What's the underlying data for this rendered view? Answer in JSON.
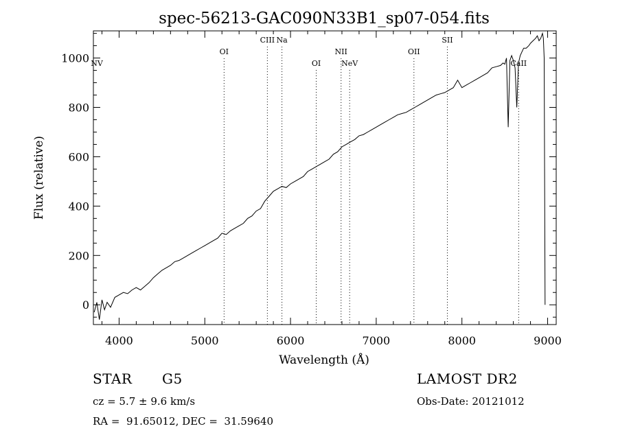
{
  "chart_data": {
    "type": "line",
    "title": "spec-56213-GAC090N33B1_sp07-054.fits",
    "xlabel": "Wavelength (Å)",
    "ylabel": "Flux (relative)",
    "xlim": [
      3700,
      9100
    ],
    "ylim": [
      -80,
      1110
    ],
    "x_ticks": [
      4000,
      5000,
      6000,
      7000,
      8000,
      9000
    ],
    "y_ticks": [
      0,
      200,
      400,
      600,
      800,
      1000
    ],
    "grid": false,
    "line_color": "#000000",
    "series": [
      {
        "x": [
          3710,
          3740,
          3770,
          3800,
          3830,
          3860,
          3900,
          3950,
          4000,
          4050,
          4100,
          4150,
          4200,
          4250,
          4300,
          4350,
          4400,
          4450,
          4500,
          4550,
          4600,
          4650,
          4700,
          4750,
          4800,
          4850,
          4900,
          4950,
          5000,
          5050,
          5100,
          5150,
          5200,
          5250,
          5300,
          5350,
          5400,
          5450,
          5500,
          5550,
          5600,
          5650,
          5700,
          5750,
          5800,
          5850,
          5900,
          5950,
          6000,
          6050,
          6100,
          6150,
          6200,
          6250,
          6300,
          6350,
          6400,
          6450,
          6500,
          6550,
          6600,
          6650,
          6700,
          6750,
          6800,
          6850,
          6900,
          6950,
          7000,
          7050,
          7100,
          7150,
          7200,
          7250,
          7300,
          7350,
          7400,
          7450,
          7500,
          7550,
          7600,
          7650,
          7700,
          7750,
          7800,
          7850,
          7900,
          7950,
          8000,
          8050,
          8100,
          8150,
          8200,
          8250,
          8300,
          8350,
          8400,
          8450,
          8480,
          8500,
          8520,
          8540,
          8560,
          8580,
          8600,
          8620,
          8640,
          8660,
          8680,
          8700,
          8720,
          8750,
          8780,
          8800,
          8830,
          8860,
          8880,
          8900,
          8920,
          8940,
          8950,
          8960,
          8970
        ],
        "y": [
          -30,
          10,
          -60,
          20,
          -20,
          10,
          -10,
          30,
          40,
          50,
          45,
          60,
          70,
          60,
          75,
          90,
          110,
          125,
          140,
          150,
          160,
          175,
          180,
          190,
          200,
          210,
          220,
          230,
          240,
          250,
          260,
          270,
          290,
          285,
          300,
          310,
          320,
          330,
          350,
          360,
          380,
          390,
          420,
          440,
          460,
          470,
          480,
          475,
          490,
          500,
          510,
          520,
          540,
          550,
          560,
          570,
          580,
          590,
          610,
          620,
          640,
          650,
          660,
          670,
          685,
          690,
          700,
          710,
          720,
          730,
          740,
          750,
          760,
          770,
          775,
          780,
          790,
          800,
          810,
          820,
          830,
          840,
          850,
          855,
          860,
          870,
          880,
          910,
          880,
          890,
          900,
          910,
          920,
          930,
          940,
          960,
          965,
          970,
          980,
          975,
          1000,
          720,
          990,
          1010,
          990,
          960,
          800,
          980,
          1010,
          1025,
          1040,
          1040,
          1050,
          1060,
          1070,
          1080,
          1090,
          1070,
          1080,
          1100,
          1080,
          1000,
          0
        ]
      }
    ],
    "annotations": [
      {
        "label": "NV",
        "x": 3740,
        "tier": "low"
      },
      {
        "label": "OI",
        "x": 5225,
        "tier": "mid"
      },
      {
        "label": "CIII",
        "x": 5730,
        "tier": "high"
      },
      {
        "label": "Na",
        "x": 5900,
        "tier": "high"
      },
      {
        "label": "OI",
        "x": 6300,
        "tier": "low"
      },
      {
        "label": "NII",
        "x": 6590,
        "tier": "mid"
      },
      {
        "label": "NeV",
        "x": 6690,
        "tier": "low"
      },
      {
        "label": "OII",
        "x": 7440,
        "tier": "mid"
      },
      {
        "label": "SII",
        "x": 7830,
        "tier": "high"
      },
      {
        "label": "CaII",
        "x": 8662,
        "tier": "low"
      }
    ]
  },
  "info": {
    "object_class": "STAR",
    "subclass": "G5",
    "survey": "LAMOST DR2",
    "cz": "cz = 5.7 ± 9.6 km/s",
    "obs_date": "Obs-Date: 20121012",
    "radec": "RA =  91.65012, DEC =  31.59640"
  }
}
